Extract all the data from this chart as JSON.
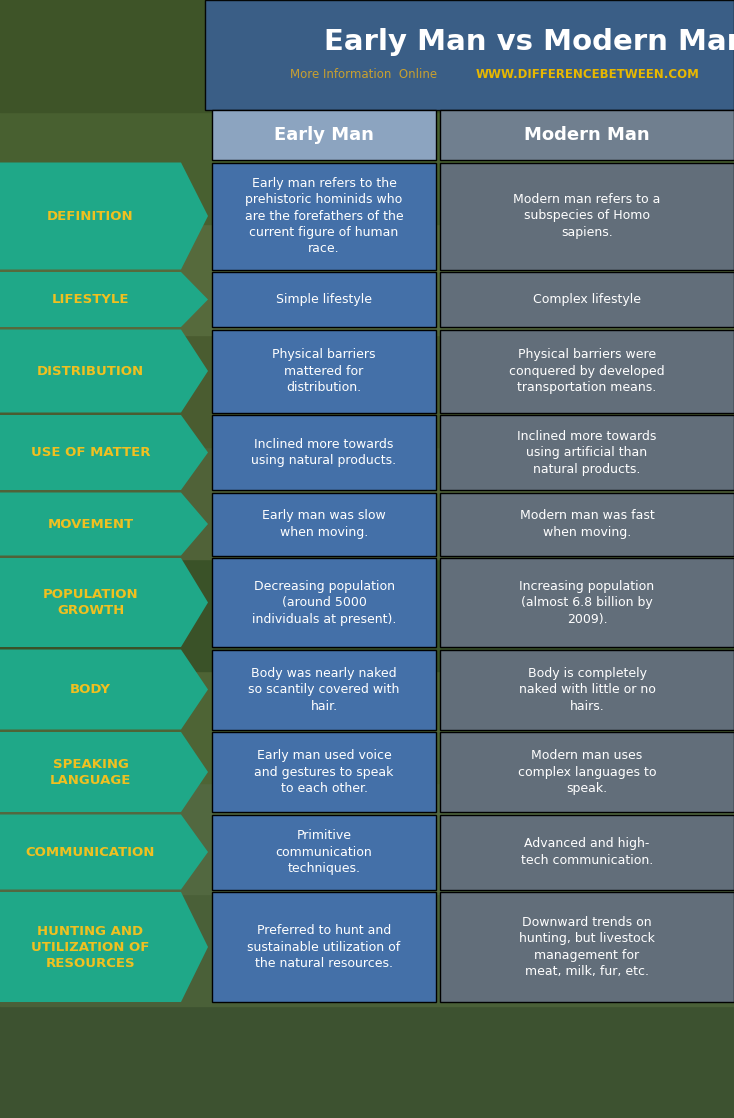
{
  "title": "Early Man vs Modern Man",
  "subtitle": "More Information  Online",
  "website": "WWW.DIFFERENCEBETWEEN.COM",
  "col1_header": "Early Man",
  "col2_header": "Modern Man",
  "title_bg": "#3a5f8f",
  "title_color": "#ffffff",
  "website_color": "#e8b800",
  "subtitle_color": "#c8a030",
  "col_header_bg1": "#8ca4c0",
  "col_header_bg2": "#707f8f",
  "col_header_color": "#ffffff",
  "label_bg": "#1fa888",
  "label_color": "#f0c020",
  "early_man_bg": "#4470a8",
  "modern_man_bg": "#626e7a",
  "cell_text_color": "#ffffff",
  "bg_color": "#4a5e3a",
  "rows": [
    {
      "label": "DEFINITION",
      "early": "Early man refers to the\nprehistoric hominids who\nare the forefathers of the\ncurrent figure of human\nrace.",
      "modern": "Modern man refers to a\nsubspecies of Homo\nsapiens."
    },
    {
      "label": "LIFESTYLE",
      "early": "Simple lifestyle",
      "modern": "Complex lifestyle"
    },
    {
      "label": "DISTRIBUTION",
      "early": "Physical barriers\nmattered for\ndistribution.",
      "modern": "Physical barriers were\nconquered by developed\ntransportation means."
    },
    {
      "label": "USE OF MATTER",
      "early": "Inclined more towards\nusing natural products.",
      "modern": "Inclined more towards\nusing artificial than\nnatural products."
    },
    {
      "label": "MOVEMENT",
      "early": "Early man was slow\nwhen moving.",
      "modern": "Modern man was fast\nwhen moving."
    },
    {
      "label": "POPULATION\nGROWTH",
      "early": "Decreasing population\n(around 5000\nindividuals at present).",
      "modern": "Increasing population\n(almost 6.8 billion by\n2009)."
    },
    {
      "label": "BODY",
      "early": "Body was nearly naked\nso scantily covered with\nhair.",
      "modern": "Body is completely\nnaked with little or no\nhairs."
    },
    {
      "label": "SPEAKING\nLANGUAGE",
      "early": "Early man used voice\nand gestures to speak\nto each other.",
      "modern": "Modern man uses\ncomplex languages to\nspeak."
    },
    {
      "label": "COMMUNICATION",
      "early": "Primitive\ncommunication\ntechniques.",
      "modern": "Advanced and high-\ntech communication."
    },
    {
      "label": "HUNTING AND\nUTILIZATION OF\nRESOURCES",
      "early": "Preferred to hunt and\nsustainable utilization of\nthe natural resources.",
      "modern": "Downward trends on\nhunting, but livestock\nmanagement for\nmeat, milk, fur, etc."
    }
  ],
  "row_heights": [
    1.12,
    0.6,
    0.88,
    0.8,
    0.68,
    0.94,
    0.85,
    0.85,
    0.8,
    1.15
  ]
}
